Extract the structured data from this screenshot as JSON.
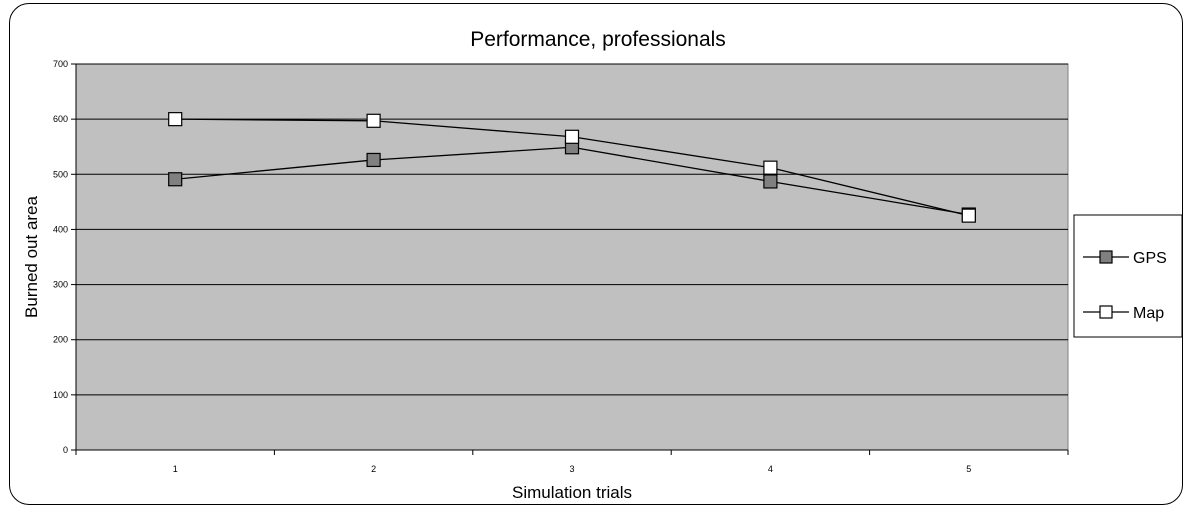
{
  "chart_data": {
    "type": "line",
    "title": "Performance, professionals",
    "xlabel": "Simulation trials",
    "ylabel": "Burned out area",
    "categories": [
      "1",
      "2",
      "3",
      "4",
      "5"
    ],
    "yticks": [
      "0",
      "100",
      "200",
      "300",
      "400",
      "500",
      "600",
      "700"
    ],
    "ylim": [
      0,
      700
    ],
    "grid": true,
    "legend_position": "right",
    "plot_background": "#c0c0c0",
    "series": [
      {
        "name": "GPS",
        "values": [
          491,
          526,
          549,
          487,
          427
        ],
        "marker_fill": "#808080"
      },
      {
        "name": "Map",
        "values": [
          600,
          597,
          568,
          512,
          425
        ],
        "marker_fill": "#ffffff"
      }
    ]
  }
}
